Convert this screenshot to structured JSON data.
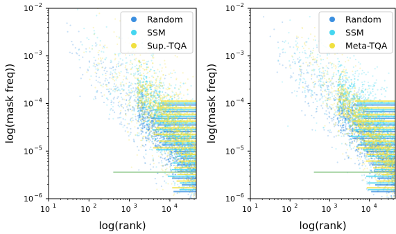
{
  "chart_data": [
    {
      "type": "scatter",
      "xlabel": "log(rank)",
      "ylabel": "log(mask freq))",
      "xscale": "log",
      "yscale": "log",
      "xlim": [
        10,
        45000
      ],
      "ylim": [
        1e-06,
        0.01
      ],
      "x_ticks": [
        {
          "base": "10",
          "exp": "1"
        },
        {
          "base": "10",
          "exp": "2"
        },
        {
          "base": "10",
          "exp": "3"
        },
        {
          "base": "10",
          "exp": "4"
        }
      ],
      "y_ticks": [
        {
          "base": "10",
          "exp": "−6"
        },
        {
          "base": "10",
          "exp": "−5"
        },
        {
          "base": "10",
          "exp": "−4"
        },
        {
          "base": "10",
          "exp": "−3"
        },
        {
          "base": "10",
          "exp": "−2"
        }
      ],
      "legend_position": "top-right",
      "series": [
        {
          "name": "Random",
          "color": "#3b8fe0",
          "trend": [
            [
              15,
              0.0055
            ],
            [
              100,
              0.0006
            ],
            [
              1000,
              0.00011
            ],
            [
              5000,
              2.8e-05
            ],
            [
              20000,
              8e-06
            ],
            [
              40000,
              3.5e-06
            ]
          ],
          "spread": [
            [
              15,
              1.3
            ],
            [
              40000,
              2.2
            ]
          ]
        },
        {
          "name": "SSM",
          "color": "#45d6f0",
          "trend": [
            [
              30,
              0.0035
            ],
            [
              300,
              0.0006
            ],
            [
              3000,
              0.00011
            ],
            [
              20000,
              2e-05
            ],
            [
              40000,
              8e-06
            ]
          ],
          "spread": [
            [
              30,
              2.0
            ],
            [
              40000,
              2.6
            ]
          ]
        },
        {
          "name": "Sup.-TQA",
          "color": "#f0e040",
          "trend": [
            [
              60,
              0.0025
            ],
            [
              500,
              0.0005
            ],
            [
              5000,
              8e-05
            ],
            [
              30000,
              1.5e-05
            ],
            [
              45000,
              7e-06
            ]
          ],
          "spread": [
            [
              60,
              2.4
            ],
            [
              45000,
              3.0
            ]
          ]
        }
      ]
    },
    {
      "type": "scatter",
      "xlabel": "log(rank)",
      "ylabel": "log(mask freq))",
      "xscale": "log",
      "yscale": "log",
      "xlim": [
        10,
        45000
      ],
      "ylim": [
        1e-06,
        0.01
      ],
      "x_ticks": [
        {
          "base": "10",
          "exp": "1"
        },
        {
          "base": "10",
          "exp": "2"
        },
        {
          "base": "10",
          "exp": "3"
        },
        {
          "base": "10",
          "exp": "4"
        }
      ],
      "y_ticks": [
        {
          "base": "10",
          "exp": "−6"
        },
        {
          "base": "10",
          "exp": "−5"
        },
        {
          "base": "10",
          "exp": "−4"
        },
        {
          "base": "10",
          "exp": "−3"
        },
        {
          "base": "10",
          "exp": "−2"
        }
      ],
      "legend_position": "top-right",
      "series": [
        {
          "name": "Random",
          "color": "#3b8fe0",
          "trend": [
            [
              15,
              0.0055
            ],
            [
              100,
              0.0006
            ],
            [
              1000,
              0.00011
            ],
            [
              5000,
              2.8e-05
            ],
            [
              20000,
              8e-06
            ],
            [
              40000,
              3.5e-06
            ]
          ],
          "spread": [
            [
              15,
              1.3
            ],
            [
              40000,
              2.2
            ]
          ]
        },
        {
          "name": "SSM",
          "color": "#45d6f0",
          "trend": [
            [
              30,
              0.0035
            ],
            [
              300,
              0.0006
            ],
            [
              3000,
              0.00012
            ],
            [
              20000,
              2.5e-05
            ],
            [
              40000,
              1e-05
            ]
          ],
          "spread": [
            [
              30,
              2.0
            ],
            [
              40000,
              2.6
            ]
          ]
        },
        {
          "name": "Meta-TQA",
          "color": "#f0e040",
          "trend": [
            [
              80,
              0.002
            ],
            [
              600,
              0.0004
            ],
            [
              5000,
              5e-05
            ],
            [
              25000,
              9e-06
            ],
            [
              45000,
              4.5e-06
            ]
          ],
          "spread": [
            [
              80,
              1.8
            ],
            [
              45000,
              2.0
            ]
          ]
        }
      ]
    }
  ]
}
